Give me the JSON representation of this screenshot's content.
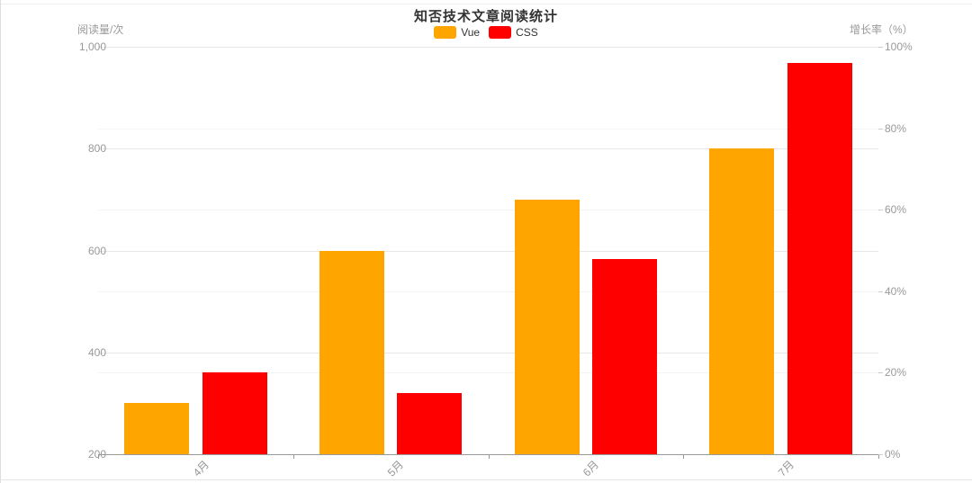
{
  "page_title": "知否技术文章阅读统计",
  "legend": {
    "items": [
      {
        "label": "Vue",
        "color": "#ffa500"
      },
      {
        "label": "CSS",
        "color": "#ff0000"
      }
    ]
  },
  "chart_data": {
    "type": "bar",
    "title": "知否技术文章阅读统计",
    "categories": [
      "4月",
      "5月",
      "6月",
      "7月"
    ],
    "series": [
      {
        "name": "Vue",
        "color": "#ffa500",
        "axis": "left",
        "values": [
          300,
          600,
          700,
          800
        ]
      },
      {
        "name": "CSS",
        "color": "#ff0000",
        "axis": "right",
        "values": [
          20,
          15,
          48,
          96
        ]
      }
    ],
    "left_axis": {
      "name": "阅读量/次",
      "min": 200,
      "max": 1000,
      "tick_values": [
        200,
        400,
        600,
        800,
        1000
      ],
      "tick_labels": [
        "200",
        "400",
        "600",
        "800",
        "1,000"
      ]
    },
    "right_axis": {
      "name": "增长率（%）",
      "min": 0,
      "max": 100,
      "tick_values": [
        0,
        20,
        40,
        60,
        80,
        100
      ],
      "tick_labels": [
        "0%",
        "20%",
        "40%",
        "60%",
        "80%",
        "100%"
      ]
    },
    "legend_position": "top",
    "grid": true,
    "category_label_rotate": 45
  }
}
